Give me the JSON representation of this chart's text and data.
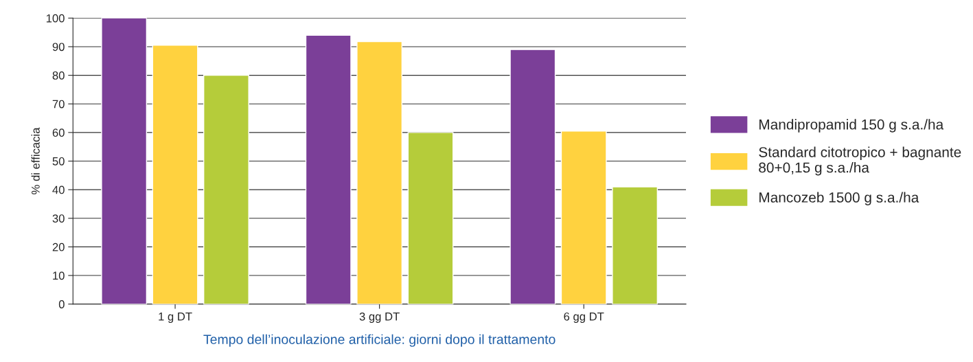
{
  "chart_data": {
    "type": "bar",
    "xlabel": "Tempo dell’inoculazione artificiale: giorni dopo il trattamento",
    "ylabel": "% di efficacia",
    "categories": [
      "1 g DT",
      "3 gg DT",
      "6 gg DT"
    ],
    "series": [
      {
        "name": "Mandipropamid 150 g s.a./ha",
        "color": "#7b3f98",
        "values": [
          100,
          94,
          89
        ]
      },
      {
        "name": "Standard citotropico + bagnante\n80+0,15 g s.a./ha",
        "color": "#ffd23f",
        "values": [
          90.5,
          91.8,
          60.5
        ]
      },
      {
        "name": "Mancozeb 1500 g s.a./ha",
        "color": "#b5cc3a",
        "values": [
          80,
          60,
          41
        ]
      }
    ],
    "ylim": [
      0,
      100
    ],
    "yticks": [
      0,
      10,
      20,
      30,
      40,
      50,
      60,
      70,
      80,
      90,
      100
    ],
    "grid": "y",
    "legend": "right"
  }
}
